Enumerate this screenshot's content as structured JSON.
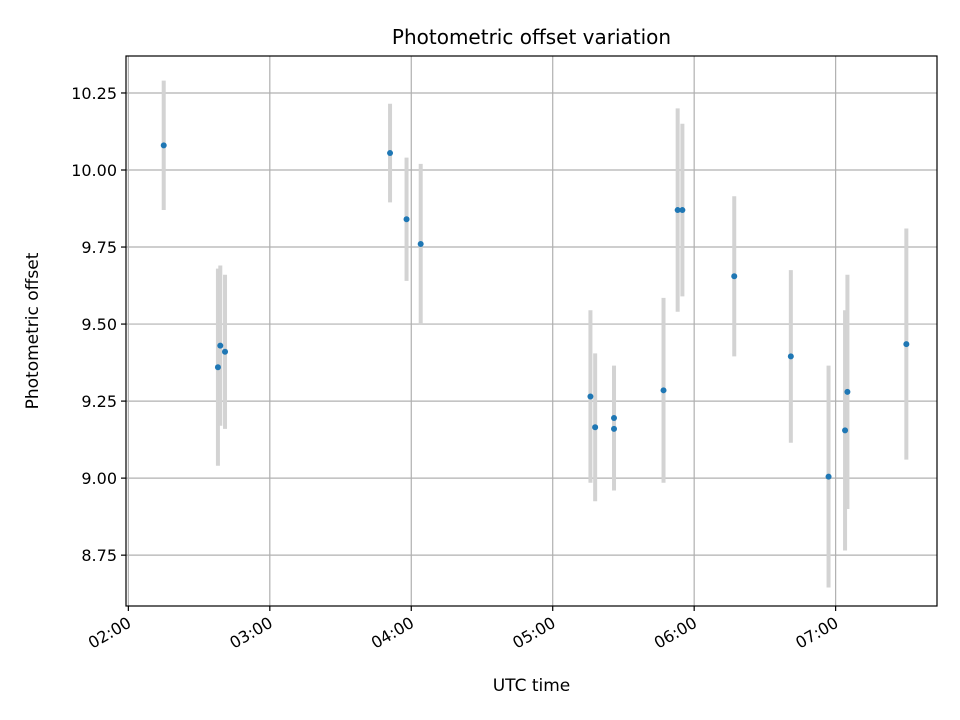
{
  "chart_data": {
    "type": "scatter",
    "title": "Photometric offset variation",
    "xlabel": "UTC time",
    "ylabel": "Photometric offset",
    "xlim": [
      "01:59",
      "07:43"
    ],
    "ylim": [
      8.585,
      10.37
    ],
    "x_ticks": [
      "02:00",
      "03:00",
      "04:00",
      "05:00",
      "06:00",
      "07:00"
    ],
    "y_ticks": [
      8.75,
      9.0,
      9.25,
      9.5,
      9.75,
      10.0,
      10.25
    ],
    "y_tick_labels": [
      "8.75",
      "9.00",
      "9.25",
      "9.50",
      "9.75",
      "10.00",
      "10.25"
    ],
    "grid": true,
    "marker_color": "#1f77b4",
    "errorbar_color": "#d3d3d3",
    "points": [
      {
        "x": "02:15",
        "y": 10.08,
        "err": 0.21
      },
      {
        "x": "02:38",
        "y": 9.36,
        "err": 0.32
      },
      {
        "x": "02:39",
        "y": 9.43,
        "err": 0.26
      },
      {
        "x": "02:41",
        "y": 9.41,
        "err": 0.25
      },
      {
        "x": "03:51",
        "y": 10.055,
        "err": 0.16
      },
      {
        "x": "03:58",
        "y": 9.84,
        "err": 0.2
      },
      {
        "x": "04:04",
        "y": 9.76,
        "err": 0.26
      },
      {
        "x": "05:16",
        "y": 9.265,
        "err": 0.28
      },
      {
        "x": "05:18",
        "y": 9.165,
        "err": 0.24
      },
      {
        "x": "05:26",
        "y": 9.195,
        "err": 0.17
      },
      {
        "x": "05:26",
        "y": 9.16,
        "err": 0.2
      },
      {
        "x": "05:47",
        "y": 9.285,
        "err": 0.3
      },
      {
        "x": "05:53",
        "y": 9.87,
        "err": 0.33
      },
      {
        "x": "05:55",
        "y": 9.87,
        "err": 0.28
      },
      {
        "x": "06:17",
        "y": 9.655,
        "err": 0.26
      },
      {
        "x": "06:41",
        "y": 9.395,
        "err": 0.28
      },
      {
        "x": "06:57",
        "y": 9.005,
        "err": 0.36
      },
      {
        "x": "07:04",
        "y": 9.155,
        "err": 0.39
      },
      {
        "x": "07:05",
        "y": 9.28,
        "err": 0.38
      },
      {
        "x": "07:30",
        "y": 9.435,
        "err": 0.375
      }
    ]
  }
}
